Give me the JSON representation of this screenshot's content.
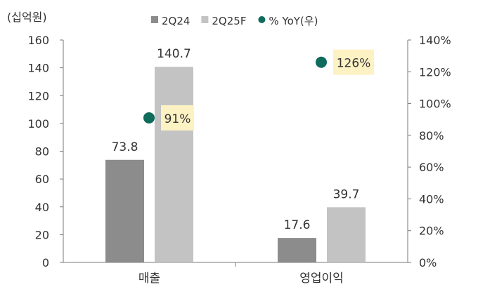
{
  "chart_data": {
    "type": "bar",
    "unit_label": "(십억원)",
    "categories": [
      "매출",
      "영업이익"
    ],
    "series": [
      {
        "name": "2Q24",
        "values": [
          73.8,
          17.6
        ],
        "color": "#8c8c8c",
        "value_labels": [
          "73.8",
          "17.6"
        ]
      },
      {
        "name": "2Q25F",
        "values": [
          140.7,
          39.7
        ],
        "color": "#c3c3c3",
        "value_labels": [
          "140.7",
          "39.7"
        ]
      }
    ],
    "secondary_series": {
      "name": "% YoY(우)",
      "type": "scatter",
      "values": [
        91,
        126
      ],
      "value_labels": [
        "91%",
        "126%"
      ],
      "color": "#0f6b5c",
      "label_background": "#fdf2c4"
    },
    "y_left": {
      "min": 0,
      "max": 160,
      "ticks": [
        "0",
        "20",
        "40",
        "60",
        "80",
        "100",
        "120",
        "140",
        "160"
      ]
    },
    "y_right": {
      "min": 0,
      "max": 140,
      "ticks": [
        "0%",
        "20%",
        "40%",
        "60%",
        "80%",
        "100%",
        "120%",
        "140%"
      ]
    },
    "legend_position": "top",
    "grid": false
  }
}
